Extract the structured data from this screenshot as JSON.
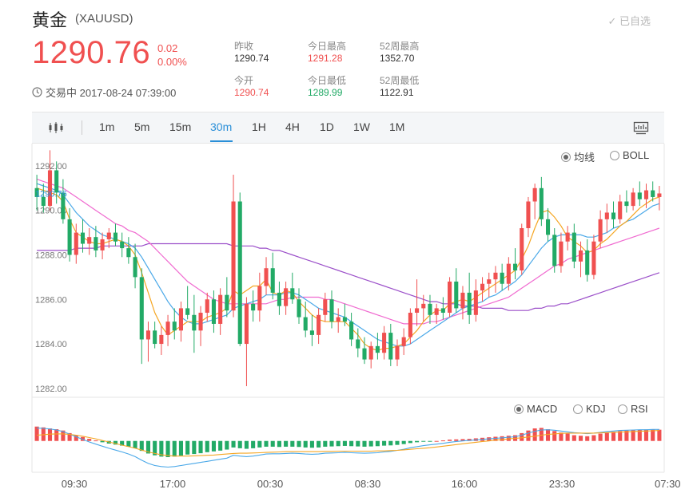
{
  "header": {
    "title": "黄金",
    "symbol": "(XAUUSD)",
    "watch_label": "✓ 已自选",
    "price": "1290.76",
    "change": "0.02",
    "change_pct": "0.00%",
    "status": "交易中 2017-08-24 07:39:00"
  },
  "stats": [
    {
      "label": "昨收",
      "value": "1290.74"
    },
    {
      "label": "今日最高",
      "value": "1291.28"
    },
    {
      "label": "52周最高",
      "value": "1352.70"
    },
    {
      "label": "今开",
      "value": "1290.74"
    },
    {
      "label": "今日最低",
      "value": "1289.99"
    },
    {
      "label": "52周最低",
      "value": "1122.91"
    }
  ],
  "toolbar": {
    "intervals": [
      "1m",
      "5m",
      "15m",
      "30m",
      "1H",
      "4H",
      "1D",
      "1W",
      "1M"
    ],
    "active": "30m"
  },
  "legend_main": {
    "ma_label": "均线",
    "boll_label": "BOLL",
    "selected": "均线"
  },
  "legend_sub": {
    "macd_label": "MACD",
    "kdj_label": "KDJ",
    "rsi_label": "RSI",
    "selected": "MACD"
  },
  "colors": {
    "up": "#f05050",
    "down": "#22aa66",
    "ma5": "#f5a623",
    "ma10": "#4aa8e8",
    "ma20": "#f06ad0",
    "ma60": "#9b4fc9",
    "macd_dif": "#4aa8e8",
    "macd_dea": "#f5a623"
  },
  "chart_data": {
    "type": "candlestick",
    "current_price_label": "1290.76",
    "y_ticks": [
      1282.0,
      1284.0,
      1286.0,
      1288.0,
      1290.0,
      1292.0
    ],
    "ylim": [
      1281.6,
      1293.0
    ],
    "x_ticks": [
      "09:30",
      "17:00",
      "00:30",
      "08:30",
      "16:00",
      "23:30",
      "07:30"
    ],
    "candles": [
      [
        1291.0,
        1291.6,
        1290.0,
        1290.6
      ],
      [
        1290.6,
        1291.2,
        1289.9,
        1290.2
      ],
      [
        1290.2,
        1292.7,
        1290.0,
        1291.8
      ],
      [
        1291.8,
        1292.2,
        1290.3,
        1290.8
      ],
      [
        1290.8,
        1291.4,
        1289.4,
        1289.6
      ],
      [
        1289.6,
        1290.1,
        1287.7,
        1288.0
      ],
      [
        1288.0,
        1289.4,
        1287.6,
        1289.0
      ],
      [
        1289.0,
        1289.6,
        1288.1,
        1288.5
      ],
      [
        1288.5,
        1289.2,
        1288.0,
        1288.8
      ],
      [
        1288.8,
        1289.3,
        1287.9,
        1288.2
      ],
      [
        1288.2,
        1289.0,
        1287.8,
        1288.7
      ],
      [
        1288.7,
        1289.2,
        1288.3,
        1289.0
      ],
      [
        1289.0,
        1289.4,
        1288.4,
        1288.6
      ],
      [
        1288.6,
        1289.0,
        1287.9,
        1288.3
      ],
      [
        1288.3,
        1288.8,
        1287.6,
        1287.9
      ],
      [
        1287.9,
        1288.5,
        1286.5,
        1287.0
      ],
      [
        1287.0,
        1287.4,
        1283.1,
        1284.2
      ],
      [
        1284.2,
        1285.0,
        1283.2,
        1284.6
      ],
      [
        1284.6,
        1285.0,
        1283.8,
        1284.0
      ],
      [
        1284.0,
        1284.8,
        1283.5,
        1284.4
      ],
      [
        1284.4,
        1285.3,
        1283.9,
        1285.0
      ],
      [
        1285.0,
        1285.6,
        1284.2,
        1284.6
      ],
      [
        1284.6,
        1285.9,
        1284.1,
        1285.6
      ],
      [
        1285.6,
        1286.6,
        1285.1,
        1285.3
      ],
      [
        1285.3,
        1286.2,
        1283.6,
        1284.6
      ],
      [
        1284.6,
        1285.7,
        1283.9,
        1285.4
      ],
      [
        1285.4,
        1286.3,
        1285.0,
        1286.0
      ],
      [
        1286.0,
        1286.4,
        1284.5,
        1284.9
      ],
      [
        1284.9,
        1286.5,
        1284.4,
        1286.2
      ],
      [
        1286.2,
        1287.0,
        1285.2,
        1285.5
      ],
      [
        1285.5,
        1291.6,
        1285.2,
        1290.4
      ],
      [
        1290.4,
        1290.8,
        1283.9,
        1284.0
      ],
      [
        1284.0,
        1286.1,
        1282.1,
        1285.8
      ],
      [
        1285.8,
        1286.4,
        1285.0,
        1285.5
      ],
      [
        1285.5,
        1287.2,
        1285.0,
        1286.6
      ],
      [
        1286.6,
        1287.9,
        1286.2,
        1287.4
      ],
      [
        1287.4,
        1288.1,
        1286.0,
        1286.3
      ],
      [
        1286.3,
        1286.8,
        1285.3,
        1285.7
      ],
      [
        1285.7,
        1286.8,
        1285.3,
        1286.5
      ],
      [
        1286.5,
        1287.2,
        1285.8,
        1286.0
      ],
      [
        1286.0,
        1286.5,
        1284.9,
        1285.2
      ],
      [
        1285.2,
        1285.9,
        1284.3,
        1284.6
      ],
      [
        1284.6,
        1285.3,
        1283.9,
        1284.4
      ],
      [
        1284.4,
        1285.6,
        1284.0,
        1285.3
      ],
      [
        1285.3,
        1286.3,
        1285.0,
        1286.0
      ],
      [
        1286.0,
        1286.4,
        1284.7,
        1285.0
      ],
      [
        1285.0,
        1285.6,
        1284.5,
        1285.2
      ],
      [
        1285.2,
        1285.8,
        1284.8,
        1285.0
      ],
      [
        1285.0,
        1285.4,
        1283.9,
        1284.2
      ],
      [
        1284.2,
        1284.7,
        1283.4,
        1283.8
      ],
      [
        1283.8,
        1284.3,
        1283.1,
        1283.3
      ],
      [
        1283.3,
        1284.1,
        1282.9,
        1283.9
      ],
      [
        1283.9,
        1284.5,
        1283.3,
        1283.6
      ],
      [
        1283.6,
        1284.8,
        1283.3,
        1284.5
      ],
      [
        1284.5,
        1284.9,
        1283.0,
        1283.3
      ],
      [
        1283.3,
        1284.2,
        1283.0,
        1283.9
      ],
      [
        1283.9,
        1284.7,
        1283.5,
        1284.3
      ],
      [
        1284.3,
        1285.6,
        1284.0,
        1285.4
      ],
      [
        1285.4,
        1286.9,
        1284.8,
        1285.6
      ],
      [
        1285.6,
        1286.2,
        1285.0,
        1285.8
      ],
      [
        1285.8,
        1286.2,
        1284.9,
        1285.3
      ],
      [
        1285.3,
        1285.8,
        1284.9,
        1285.6
      ],
      [
        1285.6,
        1286.1,
        1285.1,
        1285.4
      ],
      [
        1285.4,
        1287.0,
        1285.2,
        1286.8
      ],
      [
        1286.8,
        1287.4,
        1285.4,
        1285.6
      ],
      [
        1285.6,
        1286.6,
        1285.1,
        1286.3
      ],
      [
        1286.3,
        1287.2,
        1284.9,
        1285.3
      ],
      [
        1285.3,
        1286.9,
        1285.0,
        1286.4
      ],
      [
        1286.4,
        1287.0,
        1285.9,
        1286.7
      ],
      [
        1286.7,
        1287.2,
        1286.1,
        1286.9
      ],
      [
        1286.9,
        1287.5,
        1286.3,
        1287.2
      ],
      [
        1287.2,
        1287.6,
        1286.4,
        1286.7
      ],
      [
        1286.7,
        1287.9,
        1286.4,
        1287.6
      ],
      [
        1287.6,
        1288.3,
        1286.9,
        1287.3
      ],
      [
        1287.3,
        1289.4,
        1287.1,
        1289.2
      ],
      [
        1289.2,
        1290.6,
        1288.8,
        1290.4
      ],
      [
        1290.4,
        1291.2,
        1289.6,
        1291.0
      ],
      [
        1291.0,
        1291.5,
        1289.3,
        1289.6
      ],
      [
        1289.6,
        1290.1,
        1288.6,
        1288.9
      ],
      [
        1288.9,
        1289.2,
        1287.2,
        1287.5
      ],
      [
        1287.5,
        1289.0,
        1287.2,
        1288.6
      ],
      [
        1288.6,
        1289.3,
        1288.2,
        1289.0
      ],
      [
        1289.0,
        1289.4,
        1287.4,
        1287.7
      ],
      [
        1287.7,
        1288.6,
        1287.0,
        1288.2
      ],
      [
        1288.2,
        1288.7,
        1286.8,
        1287.1
      ],
      [
        1287.1,
        1288.9,
        1286.9,
        1288.6
      ],
      [
        1288.6,
        1290.0,
        1288.3,
        1289.6
      ],
      [
        1289.6,
        1290.3,
        1289.0,
        1289.9
      ],
      [
        1289.9,
        1290.4,
        1289.2,
        1289.6
      ],
      [
        1289.6,
        1290.7,
        1289.4,
        1290.4
      ],
      [
        1290.4,
        1290.9,
        1289.9,
        1290.2
      ],
      [
        1290.2,
        1291.0,
        1290.0,
        1290.8
      ],
      [
        1290.8,
        1291.3,
        1290.2,
        1290.5
      ],
      [
        1290.5,
        1291.2,
        1290.1,
        1290.9
      ],
      [
        1290.9,
        1291.3,
        1290.4,
        1290.6
      ],
      [
        1290.6,
        1291.1,
        1290.0,
        1290.76
      ]
    ],
    "ma_series": {
      "ma5": [
        1291.0,
        1290.9,
        1290.8,
        1290.7,
        1290.4,
        1289.6,
        1289.0,
        1288.8,
        1288.6,
        1288.5,
        1288.5,
        1288.6,
        1288.7,
        1288.6,
        1288.4,
        1288.0,
        1287.2,
        1286.3,
        1285.4,
        1284.8,
        1284.4,
        1284.6,
        1284.8,
        1285.0,
        1285.0,
        1285.0,
        1285.2,
        1285.3,
        1285.4,
        1285.6,
        1286.4,
        1286.2,
        1286.4,
        1286.6,
        1286.6,
        1286.9,
        1286.3,
        1286.2,
        1286.4,
        1286.3,
        1285.9,
        1285.6,
        1285.3,
        1285.1,
        1285.0,
        1285.0,
        1285.0,
        1285.0,
        1284.7,
        1284.4,
        1284.0,
        1283.8,
        1283.7,
        1283.8,
        1283.8,
        1283.9,
        1284.0,
        1284.3,
        1284.6,
        1285.0,
        1285.3,
        1285.5,
        1285.5,
        1285.8,
        1285.9,
        1286.0,
        1285.9,
        1286.1,
        1286.3,
        1286.5,
        1286.7,
        1286.9,
        1287.1,
        1287.3,
        1287.8,
        1288.4,
        1289.2,
        1289.9,
        1290.0,
        1289.7,
        1289.3,
        1288.8,
        1288.6,
        1288.4,
        1288.1,
        1288.2,
        1288.5,
        1288.7,
        1289.0,
        1289.3,
        1289.5,
        1289.8,
        1290.1,
        1290.3,
        1290.5,
        1290.6
      ],
      "ma10": [
        1291.2,
        1291.1,
        1291.0,
        1290.9,
        1290.7,
        1290.3,
        1289.9,
        1289.6,
        1289.3,
        1289.1,
        1288.9,
        1288.8,
        1288.7,
        1288.6,
        1288.5,
        1288.3,
        1287.9,
        1287.4,
        1286.9,
        1286.4,
        1285.9,
        1285.5,
        1285.2,
        1285.0,
        1284.9,
        1284.9,
        1285.0,
        1285.1,
        1285.2,
        1285.3,
        1285.6,
        1285.7,
        1285.8,
        1285.9,
        1286.0,
        1286.2,
        1286.2,
        1286.2,
        1286.3,
        1286.3,
        1286.2,
        1286.0,
        1285.8,
        1285.6,
        1285.5,
        1285.4,
        1285.3,
        1285.2,
        1285.0,
        1284.8,
        1284.6,
        1284.4,
        1284.2,
        1284.1,
        1284.0,
        1283.9,
        1283.9,
        1284.0,
        1284.2,
        1284.4,
        1284.6,
        1284.8,
        1285.0,
        1285.2,
        1285.4,
        1285.6,
        1285.7,
        1285.8,
        1285.9,
        1286.1,
        1286.2,
        1286.4,
        1286.6,
        1286.8,
        1287.1,
        1287.5,
        1287.9,
        1288.3,
        1288.6,
        1288.8,
        1288.9,
        1288.9,
        1288.9,
        1288.9,
        1288.8,
        1288.8,
        1288.9,
        1289.0,
        1289.2,
        1289.3,
        1289.5,
        1289.6,
        1289.8,
        1290.0,
        1290.2,
        1290.3
      ],
      "ma20": [
        1291.4,
        1291.3,
        1291.2,
        1291.1,
        1291.0,
        1290.8,
        1290.6,
        1290.4,
        1290.2,
        1290.0,
        1289.8,
        1289.6,
        1289.4,
        1289.3,
        1289.1,
        1289.0,
        1288.8,
        1288.6,
        1288.3,
        1288.0,
        1287.7,
        1287.4,
        1287.1,
        1286.8,
        1286.6,
        1286.4,
        1286.2,
        1286.0,
        1285.9,
        1285.8,
        1285.8,
        1285.8,
        1285.8,
        1285.8,
        1285.8,
        1285.8,
        1285.9,
        1286.0,
        1286.0,
        1286.1,
        1286.1,
        1286.1,
        1286.1,
        1286.1,
        1286.0,
        1286.0,
        1285.9,
        1285.8,
        1285.7,
        1285.6,
        1285.5,
        1285.4,
        1285.3,
        1285.2,
        1285.1,
        1285.0,
        1284.9,
        1284.9,
        1284.9,
        1284.9,
        1285.0,
        1285.0,
        1285.1,
        1285.2,
        1285.3,
        1285.4,
        1285.5,
        1285.6,
        1285.7,
        1285.8,
        1285.9,
        1286.0,
        1286.1,
        1286.3,
        1286.5,
        1286.7,
        1286.9,
        1287.1,
        1287.3,
        1287.5,
        1287.6,
        1287.8,
        1287.9,
        1288.0,
        1288.1,
        1288.2,
        1288.3,
        1288.4,
        1288.5,
        1288.6,
        1288.7,
        1288.8,
        1288.9,
        1289.0,
        1289.1,
        1289.2
      ],
      "ma60": [
        1288.2,
        1288.2,
        1288.2,
        1288.2,
        1288.2,
        1288.2,
        1288.3,
        1288.3,
        1288.3,
        1288.3,
        1288.4,
        1288.4,
        1288.4,
        1288.4,
        1288.4,
        1288.4,
        1288.4,
        1288.5,
        1288.5,
        1288.5,
        1288.5,
        1288.5,
        1288.5,
        1288.5,
        1288.5,
        1288.5,
        1288.5,
        1288.5,
        1288.5,
        1288.5,
        1288.4,
        1288.4,
        1288.4,
        1288.4,
        1288.3,
        1288.3,
        1288.2,
        1288.2,
        1288.1,
        1288.0,
        1287.9,
        1287.8,
        1287.7,
        1287.6,
        1287.5,
        1287.4,
        1287.3,
        1287.2,
        1287.1,
        1287.0,
        1286.9,
        1286.8,
        1286.7,
        1286.6,
        1286.5,
        1286.4,
        1286.3,
        1286.2,
        1286.1,
        1286.0,
        1285.9,
        1285.9,
        1285.8,
        1285.8,
        1285.8,
        1285.7,
        1285.7,
        1285.7,
        1285.6,
        1285.6,
        1285.6,
        1285.6,
        1285.5,
        1285.5,
        1285.5,
        1285.5,
        1285.6,
        1285.6,
        1285.7,
        1285.7,
        1285.8,
        1285.8,
        1285.9,
        1286.0,
        1286.1,
        1286.2,
        1286.3,
        1286.4,
        1286.5,
        1286.6,
        1286.7,
        1286.8,
        1286.9,
        1287.0,
        1287.1,
        1287.2
      ]
    },
    "macd_hist": [
      0.55,
      0.52,
      0.48,
      0.45,
      0.4,
      0.3,
      0.22,
      0.15,
      0.08,
      0.02,
      -0.05,
      -0.1,
      -0.14,
      -0.18,
      -0.22,
      -0.28,
      -0.38,
      -0.48,
      -0.55,
      -0.6,
      -0.62,
      -0.6,
      -0.56,
      -0.52,
      -0.5,
      -0.47,
      -0.43,
      -0.4,
      -0.37,
      -0.33,
      -0.25,
      -0.28,
      -0.3,
      -0.28,
      -0.25,
      -0.22,
      -0.22,
      -0.23,
      -0.22,
      -0.22,
      -0.23,
      -0.25,
      -0.26,
      -0.25,
      -0.22,
      -0.21,
      -0.2,
      -0.19,
      -0.2,
      -0.21,
      -0.22,
      -0.21,
      -0.2,
      -0.18,
      -0.17,
      -0.15,
      -0.12,
      -0.08,
      -0.05,
      -0.03,
      -0.02,
      0.0,
      0.02,
      0.05,
      0.06,
      0.07,
      0.08,
      0.1,
      0.12,
      0.14,
      0.16,
      0.18,
      0.2,
      0.22,
      0.3,
      0.4,
      0.48,
      0.5,
      0.45,
      0.38,
      0.32,
      0.28,
      0.22,
      0.2,
      0.18,
      0.22,
      0.28,
      0.32,
      0.35,
      0.38,
      0.4,
      0.42,
      0.43,
      0.44,
      0.44,
      0.43
    ],
    "macd_dif": [
      0.5,
      0.48,
      0.46,
      0.42,
      0.36,
      0.26,
      0.16,
      0.06,
      -0.04,
      -0.12,
      -0.2,
      -0.28,
      -0.35,
      -0.42,
      -0.5,
      -0.6,
      -0.74,
      -0.86,
      -0.94,
      -0.98,
      -1.0,
      -0.98,
      -0.94,
      -0.9,
      -0.86,
      -0.82,
      -0.78,
      -0.74,
      -0.7,
      -0.66,
      -0.55,
      -0.58,
      -0.6,
      -0.58,
      -0.54,
      -0.5,
      -0.49,
      -0.49,
      -0.48,
      -0.47,
      -0.48,
      -0.5,
      -0.51,
      -0.5,
      -0.47,
      -0.46,
      -0.45,
      -0.44,
      -0.45,
      -0.46,
      -0.47,
      -0.46,
      -0.45,
      -0.42,
      -0.4,
      -0.36,
      -0.32,
      -0.26,
      -0.22,
      -0.18,
      -0.15,
      -0.12,
      -0.09,
      -0.05,
      -0.02,
      0.0,
      0.02,
      0.04,
      0.06,
      0.08,
      0.1,
      0.12,
      0.14,
      0.16,
      0.22,
      0.3,
      0.37,
      0.42,
      0.43,
      0.41,
      0.38,
      0.35,
      0.32,
      0.3,
      0.28,
      0.3,
      0.33,
      0.36,
      0.38,
      0.4,
      0.41,
      0.42,
      0.43,
      0.43,
      0.44,
      0.44
    ],
    "macd_dea": [
      0.22,
      0.24,
      0.26,
      0.27,
      0.27,
      0.25,
      0.22,
      0.18,
      0.13,
      0.08,
      0.02,
      -0.04,
      -0.1,
      -0.16,
      -0.22,
      -0.28,
      -0.35,
      -0.42,
      -0.48,
      -0.53,
      -0.56,
      -0.58,
      -0.58,
      -0.58,
      -0.57,
      -0.56,
      -0.55,
      -0.54,
      -0.52,
      -0.5,
      -0.48,
      -0.47,
      -0.47,
      -0.46,
      -0.45,
      -0.44,
      -0.43,
      -0.42,
      -0.41,
      -0.41,
      -0.41,
      -0.41,
      -0.41,
      -0.41,
      -0.4,
      -0.4,
      -0.39,
      -0.39,
      -0.39,
      -0.39,
      -0.39,
      -0.39,
      -0.38,
      -0.38,
      -0.37,
      -0.36,
      -0.34,
      -0.32,
      -0.3,
      -0.28,
      -0.26,
      -0.23,
      -0.2,
      -0.17,
      -0.14,
      -0.11,
      -0.08,
      -0.05,
      -0.02,
      0.0,
      0.03,
      0.05,
      0.08,
      0.1,
      0.12,
      0.15,
      0.18,
      0.22,
      0.25,
      0.27,
      0.29,
      0.3,
      0.3,
      0.3,
      0.3,
      0.3,
      0.31,
      0.32,
      0.33,
      0.34,
      0.35,
      0.36,
      0.37,
      0.38,
      0.39,
      0.4
    ],
    "macd_ylim": [
      -1.2,
      1.0
    ]
  }
}
